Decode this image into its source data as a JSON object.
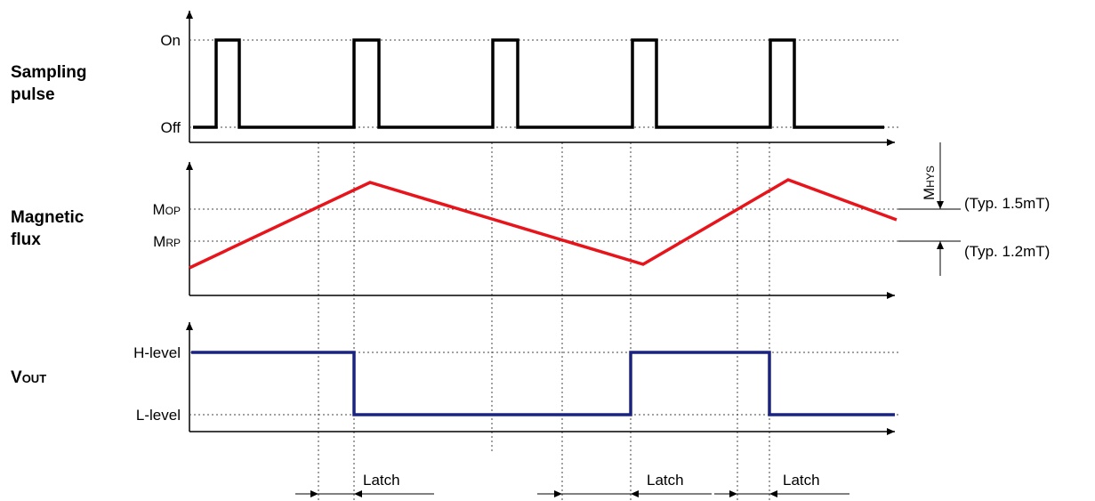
{
  "rows": {
    "sampling": {
      "title_line1": "Sampling",
      "title_line2": "pulse",
      "level_on": "On",
      "level_off": "Off"
    },
    "flux": {
      "title_line1": "Magnetic",
      "title_line2": "flux",
      "mop_main": "M",
      "mop_sub": "OP",
      "mrp_main": "M",
      "mrp_sub": "RP"
    },
    "vout": {
      "title_main": "V",
      "title_sub": "OUT",
      "level_high": "H-level",
      "level_low": "L-level"
    }
  },
  "hysteresis": {
    "label_main": "M",
    "label_sub": "HYS",
    "mop_typ": "(Typ. 1.5mT)",
    "mrp_typ": "(Typ. 1.2mT)"
  },
  "latch": {
    "labels": [
      "Latch",
      "Latch",
      "Latch"
    ]
  },
  "colors": {
    "sampling": "#000000",
    "flux": "#e8141c",
    "vout": "#1a237e"
  }
}
